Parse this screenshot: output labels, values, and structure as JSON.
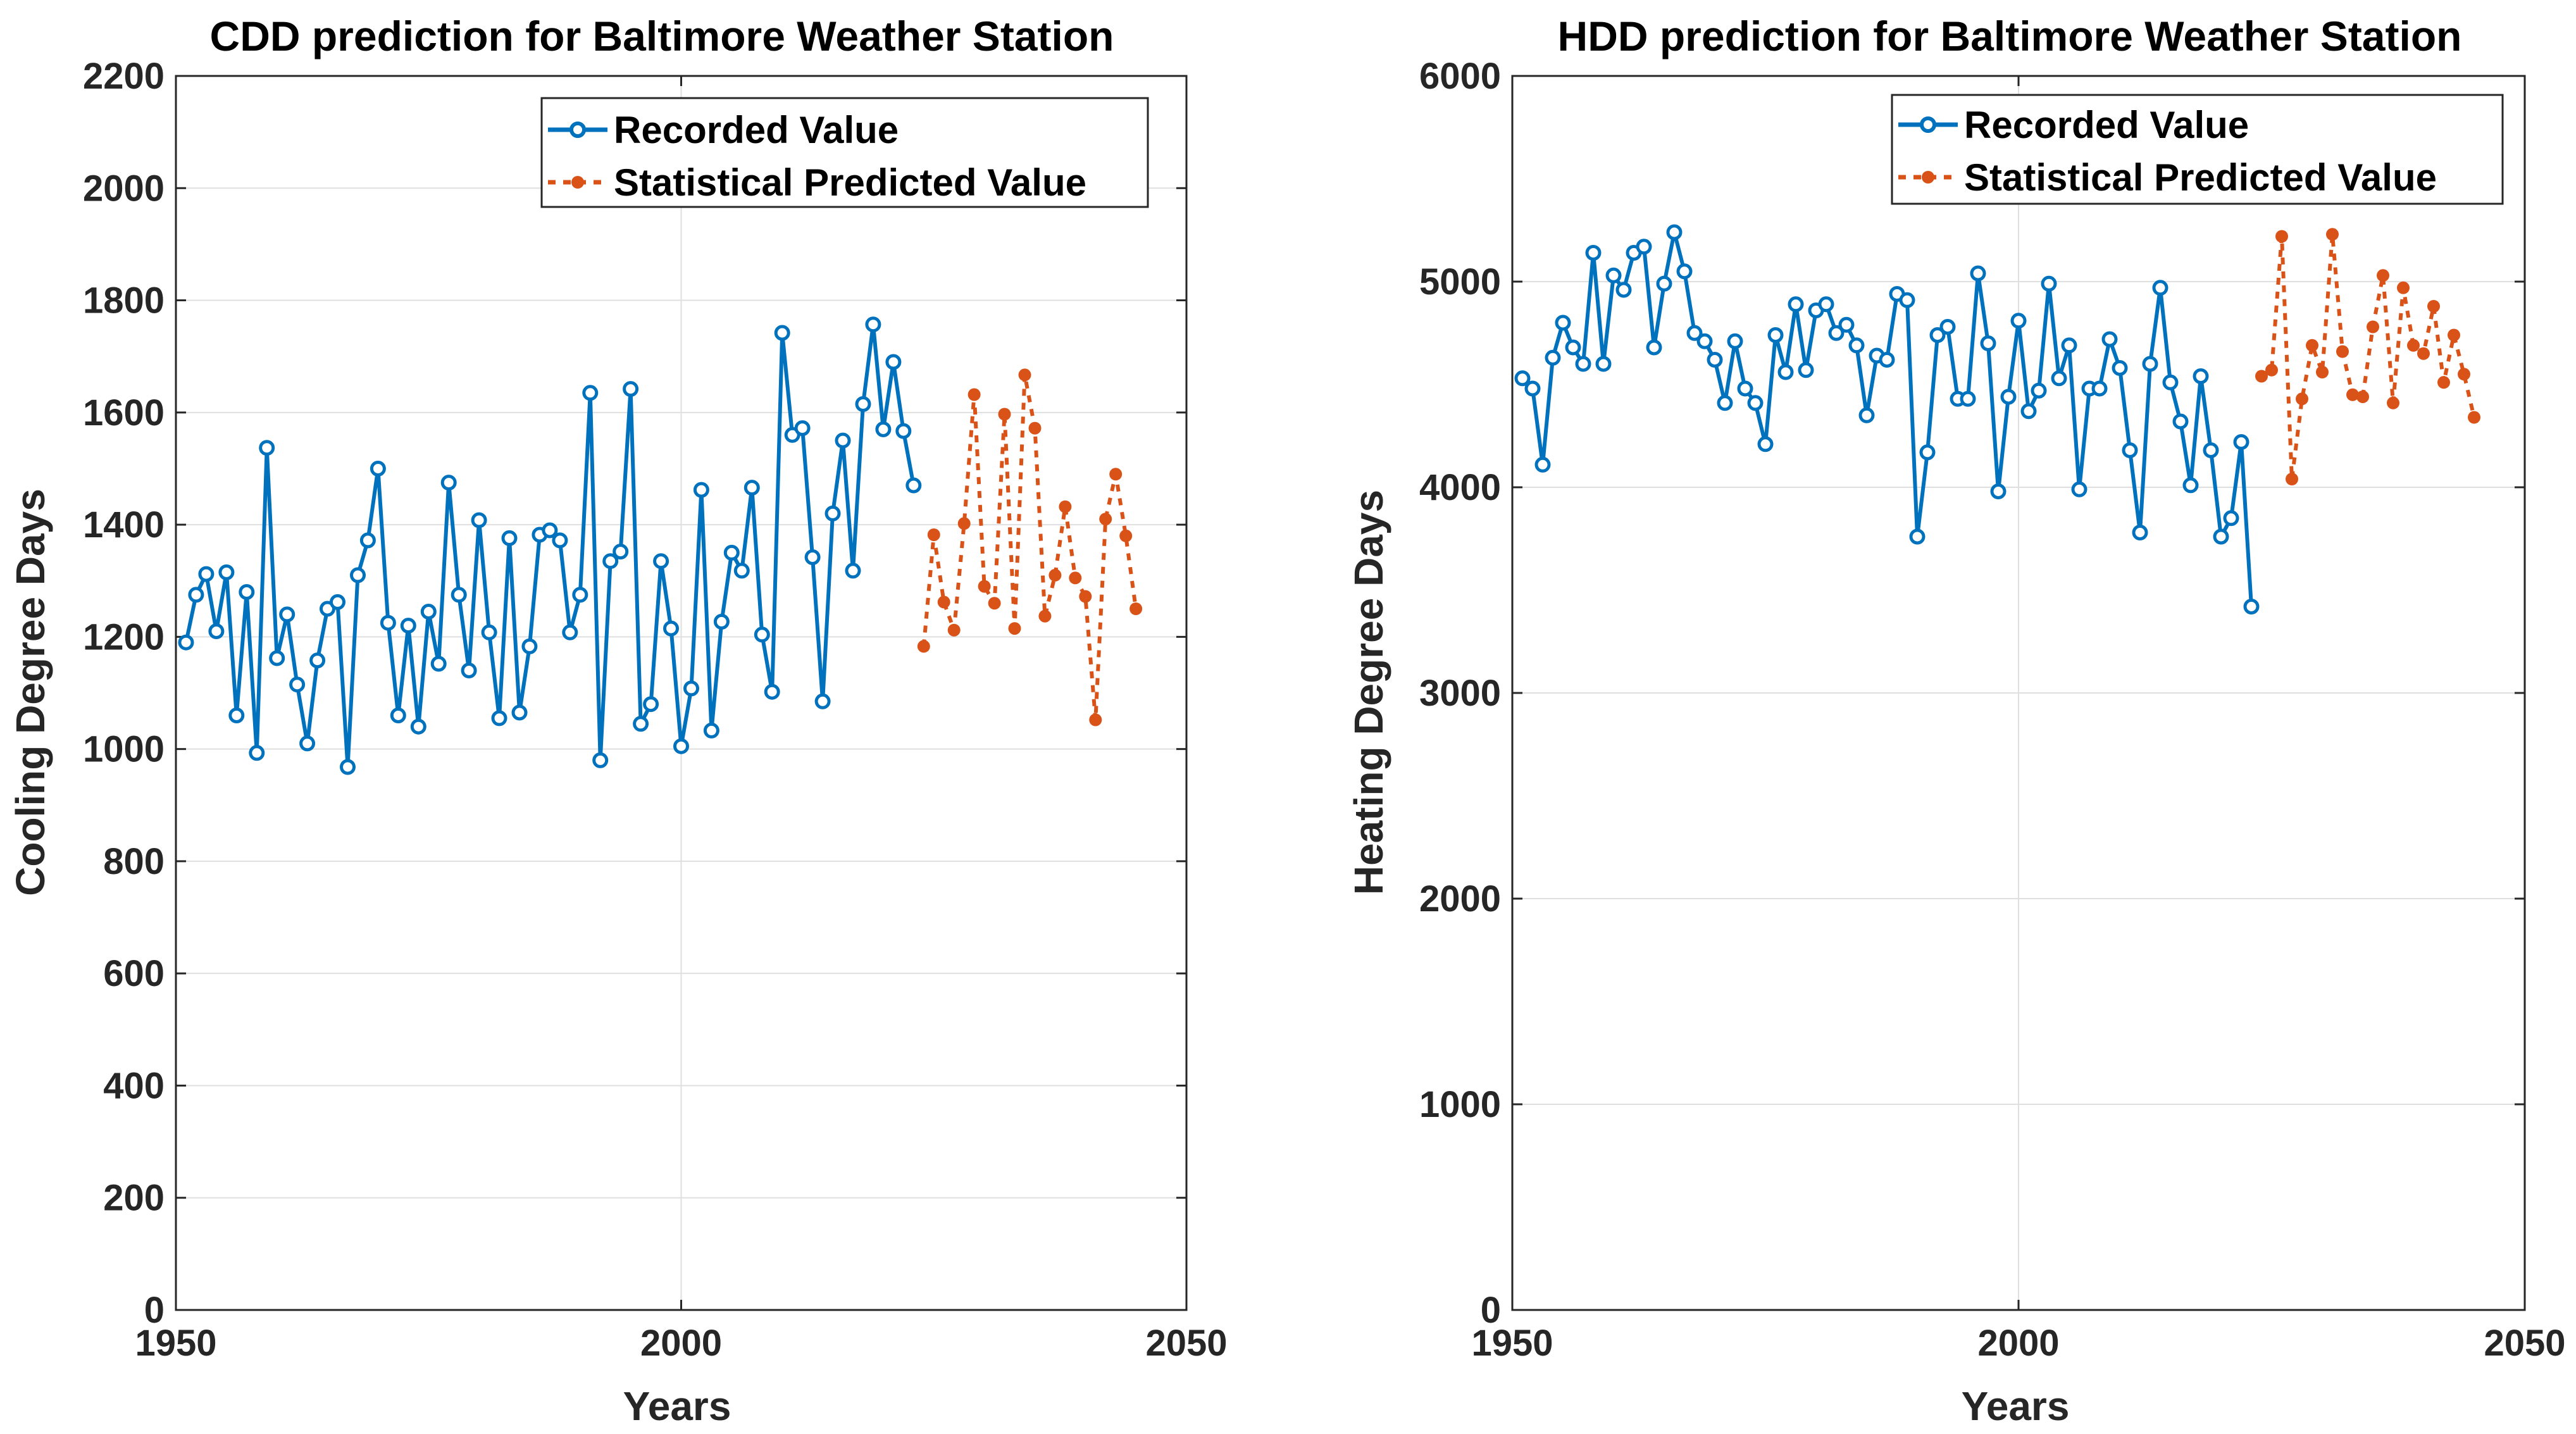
{
  "chart_data": [
    {
      "type": "line",
      "title": "CDD prediction for Baltimore Weather Station",
      "xlabel": "Years",
      "ylabel": "Cooling Degree Days",
      "xlim": [
        1950,
        2050
      ],
      "ylim": [
        0,
        2200
      ],
      "xticks": [
        1950,
        2000,
        2050
      ],
      "yticks": [
        0,
        200,
        400,
        600,
        800,
        1000,
        1200,
        1400,
        1600,
        1800,
        2000,
        2200
      ],
      "grid": true,
      "legend_position": "top-right",
      "series": [
        {
          "name": "Recorded Value",
          "style": "solid-open-circle",
          "color": "#0072BD",
          "x": [
            1951,
            1952,
            1953,
            1954,
            1955,
            1956,
            1957,
            1958,
            1959,
            1960,
            1961,
            1962,
            1963,
            1964,
            1965,
            1966,
            1967,
            1968,
            1969,
            1970,
            1971,
            1972,
            1973,
            1974,
            1975,
            1976,
            1977,
            1978,
            1979,
            1980,
            1981,
            1982,
            1983,
            1984,
            1985,
            1986,
            1987,
            1988,
            1989,
            1990,
            1991,
            1992,
            1993,
            1994,
            1995,
            1996,
            1997,
            1998,
            1999,
            2000,
            2001,
            2002,
            2003,
            2004,
            2005,
            2006,
            2007,
            2008,
            2009,
            2010,
            2011,
            2012,
            2013,
            2014,
            2015,
            2016,
            2017,
            2018,
            2019,
            2020,
            2021,
            2022,
            2023
          ],
          "y": [
            1190,
            1275,
            1312,
            1210,
            1315,
            1060,
            1280,
            993,
            1537,
            1162,
            1240,
            1115,
            1010,
            1158,
            1250,
            1262,
            968,
            1310,
            1372,
            1500,
            1225,
            1060,
            1220,
            1040,
            1245,
            1152,
            1475,
            1275,
            1140,
            1408,
            1208,
            1055,
            1376,
            1065,
            1183,
            1382,
            1390,
            1372,
            1208,
            1275,
            1635,
            980,
            1335,
            1352,
            1642,
            1045,
            1080,
            1335,
            1215,
            1005,
            1108,
            1462,
            1033,
            1227,
            1350,
            1318,
            1466,
            1204,
            1102,
            1742,
            1560,
            1572,
            1342,
            1085,
            1420,
            1550,
            1318,
            1615,
            1757,
            1570,
            1690,
            1567,
            1470
          ]
        },
        {
          "name": "Statistical Predicted Value",
          "style": "dotted-filled-dot",
          "color": "#D95319",
          "x": [
            2024,
            2025,
            2026,
            2027,
            2028,
            2029,
            2030,
            2031,
            2032,
            2033,
            2034,
            2035,
            2036,
            2037,
            2038,
            2039,
            2040,
            2041,
            2042,
            2043,
            2044,
            2045
          ],
          "y": [
            1183,
            1382,
            1262,
            1212,
            1402,
            1632,
            1290,
            1260,
            1597,
            1215,
            1667,
            1572,
            1237,
            1310,
            1432,
            1305,
            1272,
            1052,
            1410,
            1490,
            1380,
            1250
          ]
        }
      ]
    },
    {
      "type": "line",
      "title": "HDD prediction for Baltimore Weather Station",
      "xlabel": "Years",
      "ylabel": "Heating Degree Days",
      "xlim": [
        1950,
        2050
      ],
      "ylim": [
        0,
        6000
      ],
      "xticks": [
        1950,
        2000,
        2050
      ],
      "yticks": [
        0,
        1000,
        2000,
        3000,
        4000,
        5000,
        6000
      ],
      "grid": true,
      "legend_position": "top-right",
      "series": [
        {
          "name": "Recorded Value",
          "style": "solid-open-circle",
          "color": "#0072BD",
          "x": [
            1951,
            1952,
            1953,
            1954,
            1955,
            1956,
            1957,
            1958,
            1959,
            1960,
            1961,
            1962,
            1963,
            1964,
            1965,
            1966,
            1967,
            1968,
            1969,
            1970,
            1971,
            1972,
            1973,
            1974,
            1975,
            1976,
            1977,
            1978,
            1979,
            1980,
            1981,
            1982,
            1983,
            1984,
            1985,
            1986,
            1987,
            1988,
            1989,
            1990,
            1991,
            1992,
            1993,
            1994,
            1995,
            1996,
            1997,
            1998,
            1999,
            2000,
            2001,
            2002,
            2003,
            2004,
            2005,
            2006,
            2007,
            2008,
            2009,
            2010,
            2011,
            2012,
            2013,
            2014,
            2015,
            2016,
            2017,
            2018,
            2019,
            2020,
            2021,
            2022,
            2023
          ],
          "y": [
            4530,
            4480,
            4110,
            4630,
            4800,
            4680,
            4600,
            5140,
            4600,
            5030,
            4960,
            5140,
            5170,
            4680,
            4990,
            5240,
            5050,
            4750,
            4710,
            4620,
            4410,
            4710,
            4480,
            4410,
            4210,
            4740,
            4560,
            4890,
            4570,
            4860,
            4890,
            4750,
            4790,
            4690,
            4350,
            4640,
            4620,
            4940,
            4910,
            3760,
            4170,
            4740,
            4780,
            4430,
            4430,
            5040,
            4700,
            3980,
            4440,
            4810,
            4370,
            4470,
            4990,
            4530,
            4690,
            3990,
            4480,
            4480,
            4720,
            4580,
            4180,
            3780,
            4600,
            4970,
            4510,
            4320,
            4010,
            4540,
            4180,
            3760,
            3850,
            4220,
            3420
          ]
        },
        {
          "name": "Statistical Predicted Value",
          "style": "dotted-filled-dot",
          "color": "#D95319",
          "x": [
            2024,
            2025,
            2026,
            2027,
            2028,
            2029,
            2030,
            2031,
            2032,
            2033,
            2034,
            2035,
            2036,
            2037,
            2038,
            2039,
            2040,
            2041,
            2042,
            2043,
            2044,
            2045
          ],
          "y": [
            4540,
            4570,
            5220,
            4040,
            4430,
            4690,
            4560,
            5230,
            4660,
            4450,
            4440,
            4780,
            5030,
            4410,
            4970,
            4690,
            4650,
            4880,
            4510,
            4740,
            4550,
            4340
          ]
        }
      ]
    }
  ]
}
